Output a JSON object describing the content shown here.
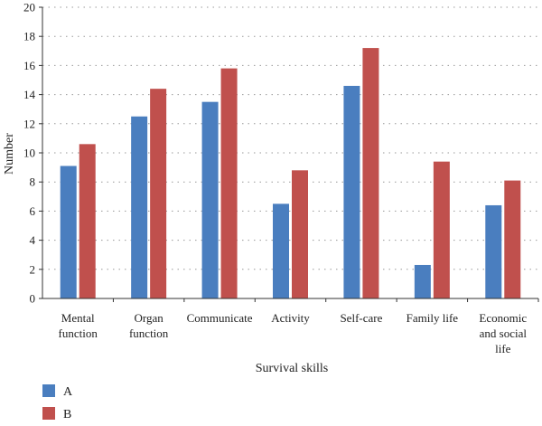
{
  "chart_data": {
    "type": "bar",
    "title": "",
    "xlabel": "Survival skills",
    "ylabel": "Number",
    "ylim": [
      0,
      20
    ],
    "yticks": [
      0,
      2,
      4,
      6,
      8,
      10,
      12,
      14,
      16,
      18,
      20
    ],
    "grid": true,
    "legend_position": "bottom-left",
    "categories": [
      [
        "Mental",
        "function"
      ],
      [
        "Organ",
        "function"
      ],
      [
        "Communicate"
      ],
      [
        "Activity"
      ],
      [
        "Self-care"
      ],
      [
        "Family life"
      ],
      [
        "Economic",
        "and social",
        "life"
      ]
    ],
    "series": [
      {
        "name": "A",
        "color": "#4a7ebf",
        "values": [
          9.1,
          12.5,
          13.5,
          6.5,
          14.6,
          2.3,
          6.4
        ]
      },
      {
        "name": "B",
        "color": "#c0504d",
        "values": [
          10.6,
          14.4,
          15.8,
          8.8,
          17.2,
          9.4,
          8.1
        ]
      }
    ]
  }
}
